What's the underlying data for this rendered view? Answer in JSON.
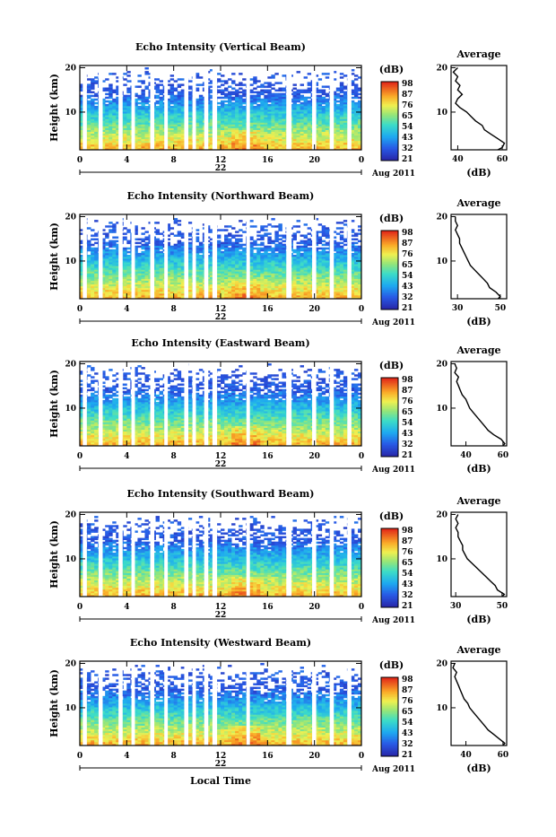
{
  "figure": {
    "x_title": "Local Time",
    "date_label": "Aug 2011",
    "day_label": "22",
    "y_title": "Height (km)",
    "colorbar_unit": "(dB)",
    "average_title": "Average",
    "average_xlabel": "(dB)"
  },
  "chart_data": [
    {
      "type": "heatmap",
      "title": "Echo Intensity (Vertical Beam)",
      "xlabel": "",
      "ylabel": "Height (km)",
      "x_ticks": [
        "0",
        "4",
        "8",
        "12",
        "16",
        "20",
        "0"
      ],
      "y_ticks": [
        "20",
        "10"
      ],
      "xlim": [
        0,
        24
      ],
      "ylim": [
        1.5,
        20.5
      ],
      "colorbar": {
        "label": "(dB)",
        "ticks": [
          "98",
          "87",
          "76",
          "65",
          "54",
          "43",
          "32",
          "21"
        ]
      },
      "average": {
        "title": "Average",
        "xlabel": "(dB)",
        "x_ticks": [
          "40",
          "60"
        ],
        "xlim": [
          37,
          62
        ],
        "y_ticks": [
          "20",
          "10"
        ],
        "profile": [
          [
            1.5,
            58
          ],
          [
            2,
            60
          ],
          [
            3,
            61
          ],
          [
            4,
            58
          ],
          [
            5,
            55
          ],
          [
            6,
            52
          ],
          [
            7,
            51
          ],
          [
            8,
            48
          ],
          [
            9,
            46
          ],
          [
            10,
            44
          ],
          [
            11,
            41
          ],
          [
            12,
            39
          ],
          [
            13,
            40
          ],
          [
            14,
            42
          ],
          [
            15,
            40
          ],
          [
            16,
            41
          ],
          [
            17,
            39
          ],
          [
            18,
            40
          ],
          [
            19,
            38
          ],
          [
            20,
            40
          ]
        ]
      }
    },
    {
      "type": "heatmap",
      "title": "Echo Intensity (Northward Beam)",
      "xlabel": "",
      "ylabel": "Height (km)",
      "x_ticks": [
        "0",
        "4",
        "8",
        "12",
        "16",
        "20",
        "0"
      ],
      "y_ticks": [
        "20",
        "10"
      ],
      "xlim": [
        0,
        24
      ],
      "ylim": [
        1.5,
        20.5
      ],
      "colorbar": {
        "label": "(dB)",
        "ticks": [
          "98",
          "87",
          "76",
          "65",
          "54",
          "43",
          "32",
          "21"
        ]
      },
      "average": {
        "title": "Average",
        "xlabel": "(dB)",
        "x_ticks": [
          "30",
          "50"
        ],
        "xlim": [
          27,
          53
        ],
        "y_ticks": [
          "20",
          "10"
        ],
        "profile": [
          [
            1.5,
            49
          ],
          [
            2,
            50
          ],
          [
            3,
            48
          ],
          [
            4,
            45
          ],
          [
            5,
            44
          ],
          [
            6,
            42
          ],
          [
            7,
            40
          ],
          [
            8,
            38
          ],
          [
            9,
            36
          ],
          [
            10,
            35
          ],
          [
            11,
            34
          ],
          [
            12,
            33
          ],
          [
            13,
            32
          ],
          [
            14,
            31
          ],
          [
            15,
            31
          ],
          [
            16,
            30
          ],
          [
            17,
            29
          ],
          [
            18,
            30
          ],
          [
            19,
            29
          ],
          [
            20,
            29
          ]
        ]
      }
    },
    {
      "type": "heatmap",
      "title": "Echo Intensity (Eastward Beam)",
      "xlabel": "",
      "ylabel": "Height (km)",
      "x_ticks": [
        "0",
        "4",
        "8",
        "12",
        "16",
        "20",
        "0"
      ],
      "y_ticks": [
        "20",
        "10"
      ],
      "xlim": [
        0,
        24
      ],
      "ylim": [
        1.5,
        20.5
      ],
      "colorbar": {
        "label": "(dB)",
        "ticks": [
          "98",
          "87",
          "76",
          "65",
          "54",
          "43",
          "32",
          "21"
        ]
      },
      "average": {
        "title": "Average",
        "xlabel": "(dB)",
        "x_ticks": [
          "40",
          "60"
        ],
        "xlim": [
          32,
          62
        ],
        "y_ticks": [
          "20",
          "10"
        ],
        "profile": [
          [
            1.5,
            60
          ],
          [
            2,
            61
          ],
          [
            3,
            59
          ],
          [
            4,
            55
          ],
          [
            5,
            52
          ],
          [
            6,
            50
          ],
          [
            7,
            48
          ],
          [
            8,
            46
          ],
          [
            9,
            44
          ],
          [
            10,
            42
          ],
          [
            11,
            41
          ],
          [
            12,
            40
          ],
          [
            13,
            38
          ],
          [
            14,
            37
          ],
          [
            15,
            36
          ],
          [
            16,
            35
          ],
          [
            17,
            36
          ],
          [
            18,
            34
          ],
          [
            19,
            35
          ],
          [
            20,
            34
          ]
        ]
      }
    },
    {
      "type": "heatmap",
      "title": "Echo Intensity (Southward Beam)",
      "xlabel": "",
      "ylabel": "Height (km)",
      "x_ticks": [
        "0",
        "4",
        "8",
        "12",
        "16",
        "20",
        "0"
      ],
      "y_ticks": [
        "20",
        "10"
      ],
      "xlim": [
        0,
        24
      ],
      "ylim": [
        1.5,
        20.5
      ],
      "colorbar": {
        "label": "(dB)",
        "ticks": [
          "98",
          "87",
          "76",
          "65",
          "54",
          "43",
          "32",
          "21"
        ]
      },
      "average": {
        "title": "Average",
        "xlabel": "(dB)",
        "x_ticks": [
          "30",
          "50"
        ],
        "xlim": [
          28,
          52
        ],
        "y_ticks": [
          "20",
          "10"
        ],
        "profile": [
          [
            1.5,
            50
          ],
          [
            2,
            51
          ],
          [
            3,
            48
          ],
          [
            4,
            47
          ],
          [
            5,
            45
          ],
          [
            6,
            43
          ],
          [
            7,
            41
          ],
          [
            8,
            39
          ],
          [
            9,
            37
          ],
          [
            10,
            35
          ],
          [
            11,
            34
          ],
          [
            12,
            33
          ],
          [
            13,
            33
          ],
          [
            14,
            32
          ],
          [
            15,
            31
          ],
          [
            16,
            31
          ],
          [
            17,
            30
          ],
          [
            18,
            31
          ],
          [
            19,
            30
          ],
          [
            20,
            31
          ]
        ]
      }
    },
    {
      "type": "heatmap",
      "title": "Echo Intensity (Westward Beam)",
      "xlabel": "Local Time",
      "ylabel": "Height (km)",
      "x_ticks": [
        "0",
        "4",
        "8",
        "12",
        "16",
        "20",
        "0"
      ],
      "y_ticks": [
        "20",
        "10"
      ],
      "xlim": [
        0,
        24
      ],
      "ylim": [
        1.5,
        20.5
      ],
      "colorbar": {
        "label": "(dB)",
        "ticks": [
          "98",
          "87",
          "76",
          "65",
          "54",
          "43",
          "32",
          "21"
        ]
      },
      "average": {
        "title": "Average",
        "xlabel": "(dB)",
        "x_ticks": [
          "40",
          "60"
        ],
        "xlim": [
          32,
          62
        ],
        "y_ticks": [
          "20",
          "10"
        ],
        "profile": [
          [
            1.5,
            60
          ],
          [
            2,
            61
          ],
          [
            3,
            58
          ],
          [
            4,
            55
          ],
          [
            5,
            52
          ],
          [
            6,
            50
          ],
          [
            7,
            48
          ],
          [
            8,
            46
          ],
          [
            9,
            44
          ],
          [
            10,
            42
          ],
          [
            11,
            41
          ],
          [
            12,
            39
          ],
          [
            13,
            38
          ],
          [
            14,
            37
          ],
          [
            15,
            36
          ],
          [
            16,
            35
          ],
          [
            17,
            34
          ],
          [
            18,
            35
          ],
          [
            19,
            33
          ],
          [
            20,
            34
          ]
        ]
      }
    }
  ]
}
